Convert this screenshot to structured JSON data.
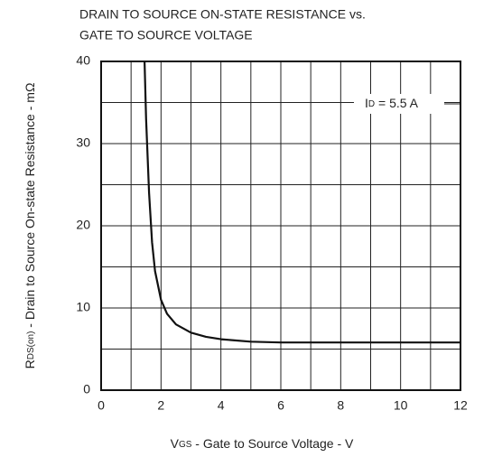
{
  "chart_data": {
    "type": "line",
    "title": [
      "DRAIN TO SOURCE ON-STATE RESISTANCE vs.",
      "GATE TO SOURCE VOLTAGE"
    ],
    "x_label": [
      "V",
      "GS",
      " - Gate to Source Voltage - V"
    ],
    "y_label": [
      "R",
      "DS(on)",
      " - Drain to Source On-state Resistance - mΩ"
    ],
    "annotation": [
      "I",
      "D",
      " = 5.5 A"
    ],
    "series": [
      {
        "color": "#111111",
        "x": [
          1.45,
          1.5,
          1.6,
          1.7,
          1.8,
          2.0,
          2.2,
          2.5,
          3,
          3.5,
          4,
          5,
          6,
          8,
          10,
          12
        ],
        "values": [
          40,
          33,
          24,
          18,
          14.5,
          11,
          9.3,
          8,
          7,
          6.5,
          6.2,
          5.9,
          5.8,
          5.8,
          5.8,
          5.8
        ]
      }
    ],
    "xlim": [
      0,
      12
    ],
    "xticks": [
      0,
      2,
      4,
      6,
      8,
      10,
      12
    ],
    "minor_xticks": [
      1,
      3,
      5,
      7,
      9,
      11
    ],
    "ylim": [
      0,
      40
    ],
    "yticks": [
      0,
      10,
      20,
      30,
      40
    ],
    "minor_yticks": [
      5,
      15,
      25,
      35
    ],
    "grid": true
  }
}
